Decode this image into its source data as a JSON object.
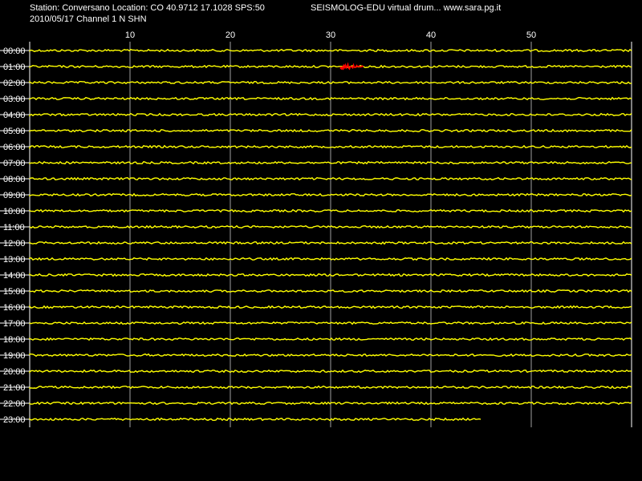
{
  "header": {
    "station_line": "Station: Conversano Location: CO 40.9712 17.1028 SPS:50",
    "date_line": "2010/05/17  Channel 1 N SHN",
    "app_title": "SEISMOLOG-EDU virtual drum... www.sara.pg.it"
  },
  "chart_data": {
    "type": "line",
    "title": "",
    "xlabel": "",
    "ylabel": "",
    "x_ticks": [
      10,
      20,
      30,
      40,
      50
    ],
    "xlim": [
      0,
      60
    ],
    "grid": true,
    "row_labels": [
      "00:00",
      "01:00",
      "02:00",
      "03:00",
      "04:00",
      "05:00",
      "06:00",
      "07:00",
      "08:00",
      "09:00",
      "10:00",
      "11:00",
      "12:00",
      "13:00",
      "14:00",
      "15:00",
      "16:00",
      "17:00",
      "18:00",
      "19:00",
      "20:00",
      "21:00",
      "22:00",
      "23:00"
    ],
    "trace_color": "#ffff00",
    "event_color": "#ff0000",
    "last_row_end_minute": 45,
    "events": [
      {
        "row": "01:00",
        "start_minute": 31,
        "end_minute": 33.3
      }
    ]
  }
}
